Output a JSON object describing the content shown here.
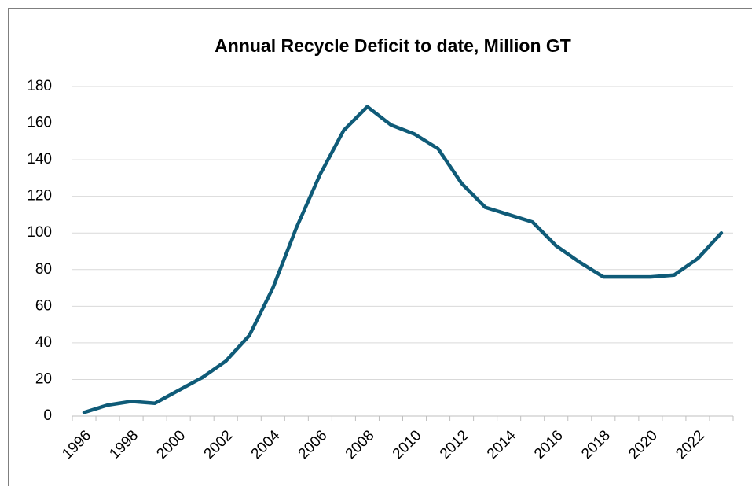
{
  "chart_data": {
    "type": "line",
    "title": "Annual Recycle Deficit to date, Million GT",
    "categories": [
      "1996",
      null,
      "1998",
      null,
      "2000",
      null,
      "2002",
      null,
      "2004",
      null,
      "2006",
      null,
      "2008",
      null,
      "2010",
      null,
      "2012",
      null,
      "2014",
      null,
      "2016",
      null,
      "2018",
      null,
      "2020",
      null,
      "2022",
      null
    ],
    "series": [
      {
        "name": "Annual Recycle Deficit",
        "color": "#0f5b78",
        "values": [
          2,
          6,
          8,
          7,
          14,
          21,
          30,
          44,
          70,
          103,
          132,
          156,
          169,
          159,
          154,
          146,
          127,
          114,
          110,
          106,
          93,
          84,
          76,
          76,
          76,
          77,
          86,
          100
        ]
      }
    ],
    "ylim": [
      0,
      180
    ],
    "yticks": [
      0,
      20,
      40,
      60,
      80,
      100,
      120,
      140,
      160,
      180
    ],
    "grid": true
  }
}
